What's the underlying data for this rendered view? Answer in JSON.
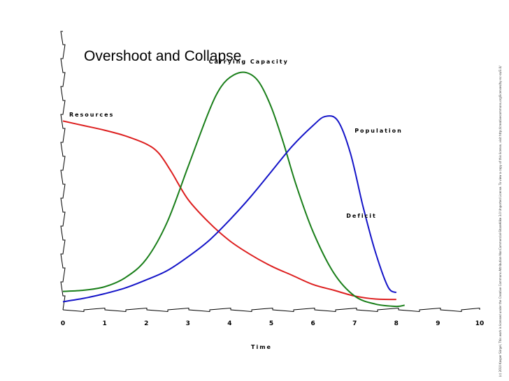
{
  "chart_data": {
    "type": "line",
    "title": "Overshoot and Collapse",
    "xlabel": "Time",
    "ylabel": "",
    "xlim": [
      0,
      10
    ],
    "ylim": [
      0,
      100
    ],
    "xticks": [
      "0",
      "1",
      "2",
      "3",
      "4",
      "5",
      "6",
      "7",
      "8",
      "9",
      "10"
    ],
    "grid": false,
    "annotations": [
      {
        "id": "deficit",
        "text": "Deficit",
        "x": 6.8,
        "y": 40
      }
    ],
    "series": [
      {
        "name": "Resources",
        "color": "#dd1f1f",
        "label_at": {
          "x": 0.15,
          "y": 84
        },
        "x": [
          0,
          0.5,
          1,
          1.5,
          2,
          2.3,
          2.6,
          3,
          3.5,
          4,
          4.5,
          5,
          5.5,
          6,
          6.5,
          7,
          7.5,
          8
        ],
        "y": [
          82,
          80,
          78,
          75.5,
          72,
          68,
          60,
          48,
          38,
          30,
          24,
          19,
          15,
          11,
          8.5,
          6,
          4.7,
          4.5
        ]
      },
      {
        "name": "Carrying Capacity",
        "color": "#1a7f1a",
        "label_at": {
          "x": 3.5,
          "y": 107
        },
        "x": [
          0,
          0.5,
          1,
          1.5,
          2,
          2.5,
          3,
          3.5,
          3.8,
          4.1,
          4.4,
          4.7,
          5,
          5.3,
          5.6,
          6,
          6.5,
          7,
          7.5,
          8,
          8.2
        ],
        "y": [
          8,
          8.5,
          10,
          14,
          22,
          38,
          62,
          86,
          97,
          102,
          103,
          99,
          88,
          72,
          54,
          34,
          16,
          6,
          2.5,
          1.5,
          2
        ]
      },
      {
        "name": "Population",
        "color": "#1414c8",
        "label_at": {
          "x": 7.0,
          "y": 77
        },
        "x": [
          0,
          0.5,
          1,
          1.5,
          2,
          2.5,
          3,
          3.5,
          4,
          4.5,
          5,
          5.5,
          6,
          6.3,
          6.6,
          6.9,
          7.2,
          7.5,
          7.8,
          8
        ],
        "y": [
          3.5,
          5,
          7,
          9.5,
          13,
          17,
          23,
          30,
          39,
          49,
          60,
          71,
          80,
          84,
          82,
          68,
          45,
          25,
          10,
          7.5
        ]
      }
    ]
  },
  "credit": "(c) 2010 Kasper Sörgel, This work is licensed under the Creative Commons Attribution-NonCommercial-ShareAlike 3.0 Unported License. To view a copy of this license, visit http://creativecommons.org/licenses/by-nc-sa/3.0/"
}
